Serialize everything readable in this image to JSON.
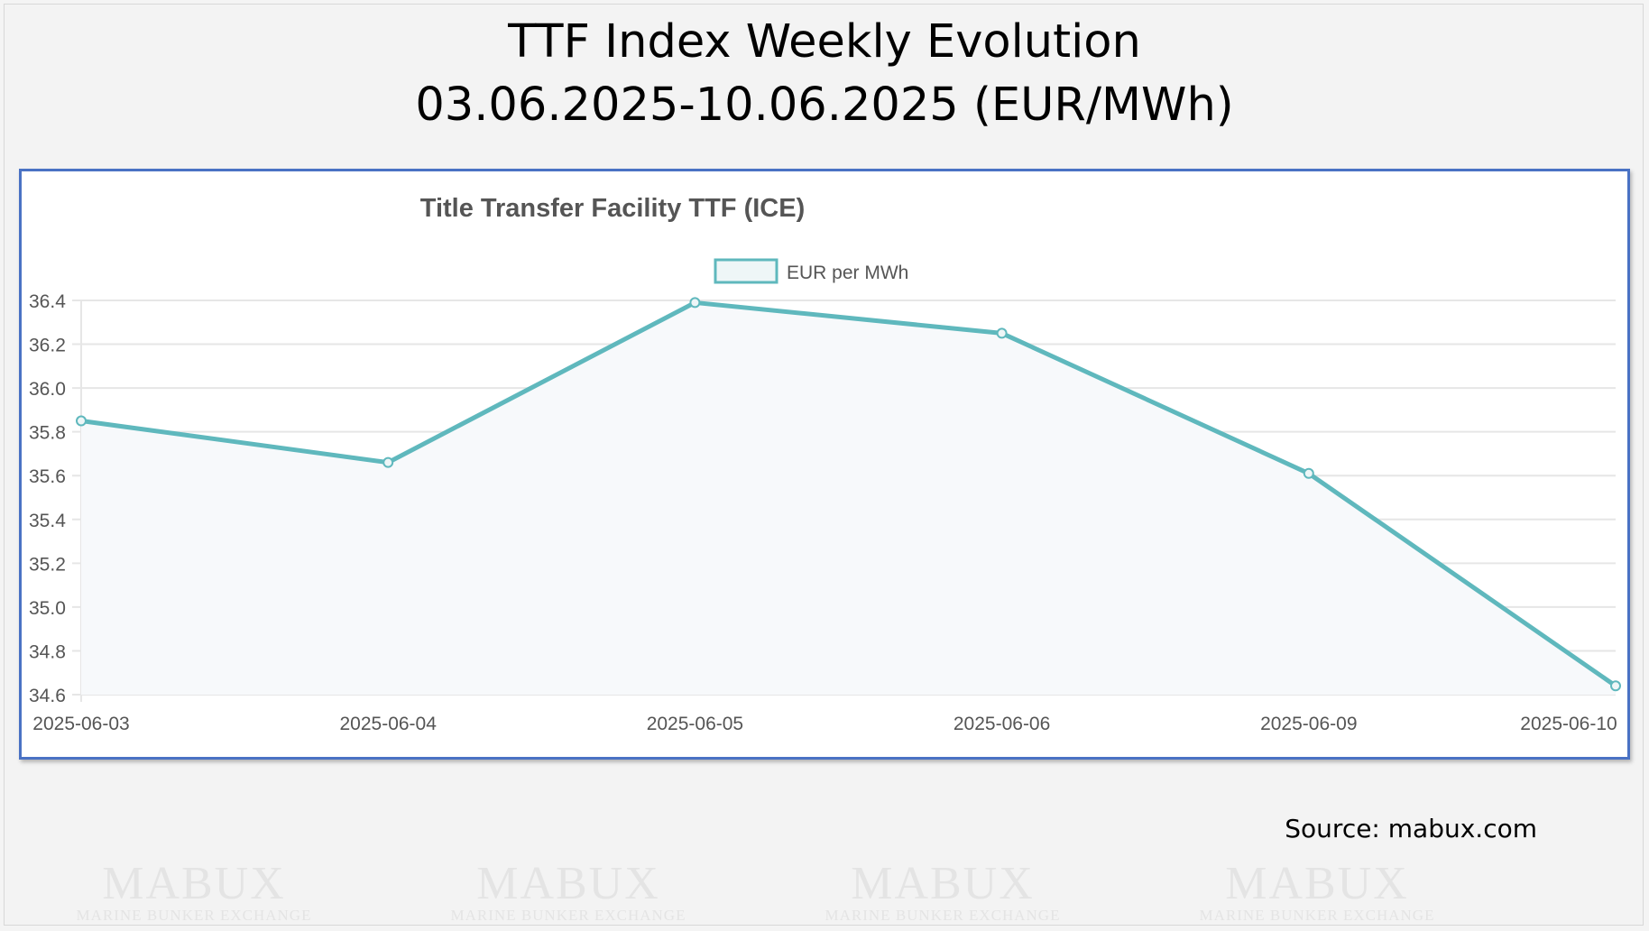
{
  "header": {
    "title_line1": "TTF Index Weekly Evolution",
    "title_line2": "03.06.2025-10.06.2025 (EUR/MWh)"
  },
  "watermark": {
    "brand": "MABUX",
    "tagline": "MARINE BUNKER EXCHANGE"
  },
  "source": "Source: mabux.com",
  "chart_data": {
    "type": "line",
    "title": "Title Transfer Facility TTF (ICE)",
    "categories": [
      "2025-06-03",
      "2025-06-04",
      "2025-06-05",
      "2025-06-06",
      "2025-06-09",
      "2025-06-10"
    ],
    "series": [
      {
        "name": "EUR per MWh",
        "values": [
          35.85,
          35.66,
          36.39,
          36.25,
          35.61,
          34.64
        ],
        "color": "#5fb8bd",
        "fill": "#f7f9fb"
      }
    ],
    "ylim": [
      34.6,
      36.4
    ],
    "yticks": [
      "36.4",
      "36.2",
      "36.0",
      "35.8",
      "35.6",
      "35.4",
      "35.2",
      "35.0",
      "34.8",
      "34.6"
    ],
    "xlabel": "",
    "ylabel": "",
    "grid": true,
    "legend": "top-center"
  }
}
